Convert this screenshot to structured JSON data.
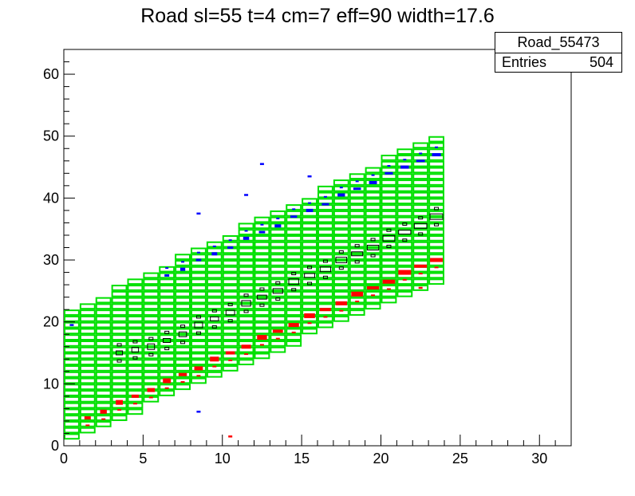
{
  "title": "Road sl=55 t=4 cm=7 eff=90 width=17.6",
  "stats": {
    "name": "Road_55473",
    "entries_label": "Entries",
    "entries_value": "504"
  },
  "chart_data": {
    "type": "heatmap",
    "title": "Road sl=55 t=4 cm=7 eff=90 width=17.6",
    "xlim": [
      0,
      32
    ],
    "ylim": [
      0,
      64
    ],
    "x_ticks": [
      0,
      5,
      10,
      15,
      20,
      25,
      30
    ],
    "y_ticks": [
      0,
      10,
      20,
      30,
      40,
      50,
      60
    ],
    "x_tick_labels": [
      "0",
      "5",
      "10",
      "15",
      "20",
      "25",
      "30"
    ],
    "y_tick_labels": [
      "0",
      "10",
      "20",
      "30",
      "40",
      "50",
      "60"
    ],
    "grid": false,
    "colors": {
      "road_outline": "#00e000",
      "red_hits": "#ff0000",
      "blue_hits": "#0000ff",
      "black_hits": "#000000"
    },
    "road": {
      "columns": 24,
      "bin_width": 1,
      "row_height": 1,
      "lower_start": 1,
      "upper_start": 22,
      "slope": 1.1
    },
    "black_diagonal_centers": [
      [
        3.5,
        15
      ],
      [
        4.5,
        15.5
      ],
      [
        5.5,
        16
      ],
      [
        6.5,
        17
      ],
      [
        7.5,
        18
      ],
      [
        8.5,
        19.5
      ],
      [
        9.5,
        20.5
      ],
      [
        10.5,
        21.5
      ],
      [
        11.5,
        23
      ],
      [
        12.5,
        24
      ],
      [
        13.5,
        25
      ],
      [
        14.5,
        26.5
      ],
      [
        15.5,
        27.5
      ],
      [
        16.5,
        28.5
      ],
      [
        17.5,
        30
      ],
      [
        18.5,
        31
      ],
      [
        19.5,
        32
      ],
      [
        20.5,
        33.5
      ],
      [
        21.5,
        34.5
      ],
      [
        22.5,
        35.5
      ],
      [
        23.5,
        37
      ]
    ],
    "red_diagonal_centers": [
      [
        1.5,
        4.5
      ],
      [
        2.5,
        5.5
      ],
      [
        3.5,
        7
      ],
      [
        4.5,
        8
      ],
      [
        5.5,
        9
      ],
      [
        6.5,
        10.5
      ],
      [
        7.5,
        11.5
      ],
      [
        8.5,
        12.5
      ],
      [
        9.5,
        14
      ],
      [
        10.5,
        15
      ],
      [
        11.5,
        16
      ],
      [
        12.5,
        17.5
      ],
      [
        13.5,
        18.5
      ],
      [
        14.5,
        19.5
      ],
      [
        15.5,
        21
      ],
      [
        16.5,
        22
      ],
      [
        17.5,
        23
      ],
      [
        18.5,
        24.5
      ],
      [
        19.5,
        25.5
      ],
      [
        20.5,
        26.5
      ],
      [
        21.5,
        28
      ],
      [
        22.5,
        29
      ],
      [
        23.5,
        30
      ]
    ],
    "blue_diagonal_centers": [
      [
        6.5,
        27.5
      ],
      [
        7.5,
        28.5
      ],
      [
        8.5,
        30
      ],
      [
        9.5,
        31
      ],
      [
        10.5,
        32
      ],
      [
        11.5,
        33.5
      ],
      [
        12.5,
        34.5
      ],
      [
        13.5,
        35.5
      ],
      [
        14.5,
        37
      ],
      [
        15.5,
        38
      ],
      [
        16.5,
        39
      ],
      [
        17.5,
        40.5
      ],
      [
        18.5,
        41.5
      ],
      [
        19.5,
        42.5
      ],
      [
        20.5,
        44
      ],
      [
        21.5,
        45
      ],
      [
        22.5,
        46
      ],
      [
        23.5,
        47
      ]
    ],
    "outlier_points": [
      {
        "x": 0.5,
        "y": 19.5,
        "color": "blue"
      },
      {
        "x": 8.5,
        "y": 5.5,
        "color": "blue"
      },
      {
        "x": 10.5,
        "y": 1.5,
        "color": "red"
      },
      {
        "x": 8.5,
        "y": 37.5,
        "color": "blue"
      },
      {
        "x": 11.5,
        "y": 40.5,
        "color": "blue"
      },
      {
        "x": 12.5,
        "y": 45.5,
        "color": "blue"
      },
      {
        "x": 15.5,
        "y": 43.5,
        "color": "blue"
      },
      {
        "x": 22.5,
        "y": 25.5,
        "color": "red"
      }
    ]
  }
}
